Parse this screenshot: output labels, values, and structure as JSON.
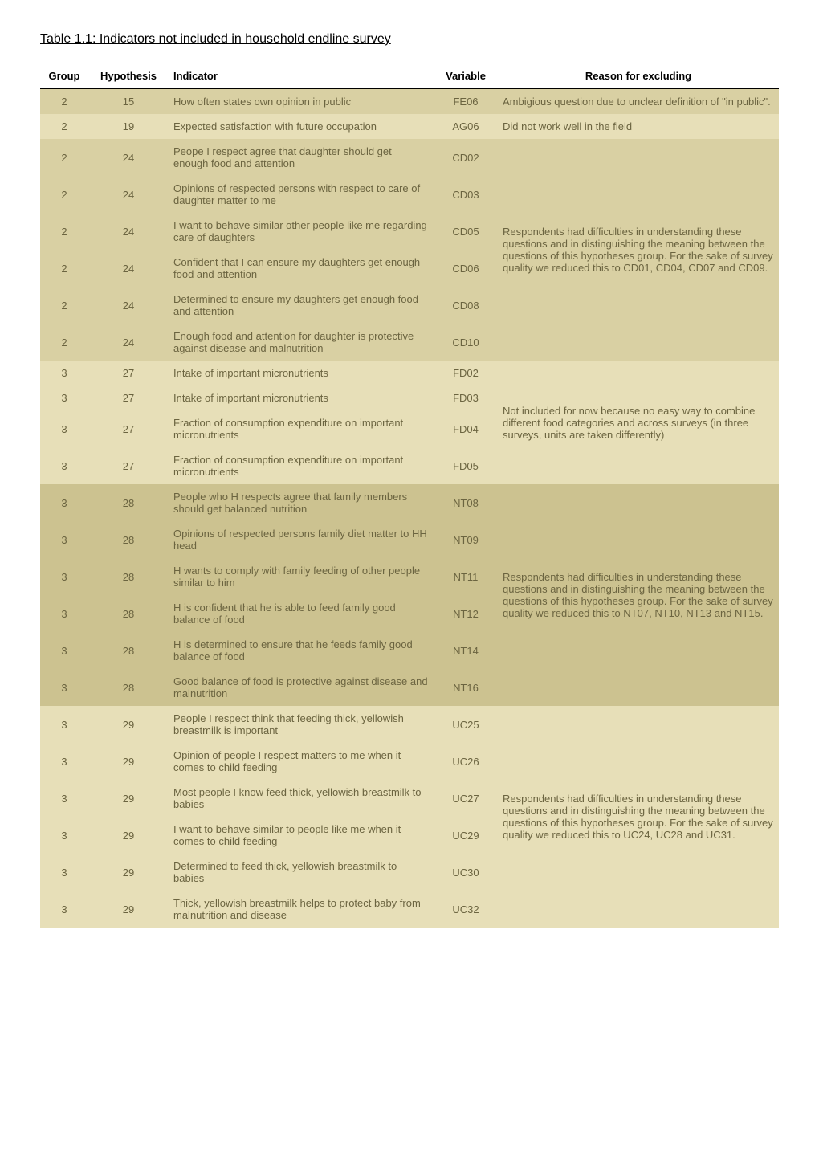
{
  "title": "Table 1.1: Indicators not included in household endline survey",
  "columns": [
    "Group",
    "Hypothesis",
    "Indicator",
    "Variable",
    "Reason for excluding"
  ],
  "row_bg_colors": {
    "band_a": "#d9d0a3",
    "band_b": "#e7dfb8",
    "band_c": "#d9d0a3",
    "band_d": "#ccc290",
    "band_e": "#e7dfb8"
  },
  "text_color": "#6b6440",
  "header_text_color": "#000000",
  "font_family": "Arial, Helvetica, sans-serif",
  "font_size_body": 13,
  "font_size_title": 16,
  "groups": [
    {
      "band": "band-a",
      "rows": [
        {
          "group": "2",
          "hypothesis": "15",
          "indicator": "How often states own opinion in public",
          "variable": "FE06",
          "reason": "Ambigious question due to unclear definition of \"in public\"."
        }
      ]
    },
    {
      "band": "band-b",
      "rows": [
        {
          "group": "2",
          "hypothesis": "19",
          "indicator": "Expected satisfaction with future occupation",
          "variable": "AG06",
          "reason": "Did not work well in the field"
        }
      ]
    },
    {
      "band": "band-c",
      "reason": "Respondents had difficulties in understanding these questions and in distinguishing the meaning between the questions of this hypotheses group. For the sake of survey quality we reduced this to CD01, CD04, CD07 and CD09.",
      "rows": [
        {
          "group": "2",
          "hypothesis": "24",
          "indicator": "Peope I respect agree that daughter should get enough food and attention",
          "variable": "CD02"
        },
        {
          "group": "2",
          "hypothesis": "24",
          "indicator": "Opinions of respected persons with respect to care of daughter matter to me",
          "variable": "CD03"
        },
        {
          "group": "2",
          "hypothesis": "24",
          "indicator": "I want to behave similar other people like me regarding care of daughters",
          "variable": "CD05"
        },
        {
          "group": "2",
          "hypothesis": "24",
          "indicator": "Confident that I can ensure my daughters get enough food and attention",
          "variable": "CD06"
        },
        {
          "group": "2",
          "hypothesis": "24",
          "indicator": "Determined to ensure my daughters get enough food and attention",
          "variable": "CD08"
        },
        {
          "group": "2",
          "hypothesis": "24",
          "indicator": "Enough food and attention for daughter is protective against disease and malnutrition",
          "variable": "CD10"
        }
      ]
    },
    {
      "band": "band-b",
      "reason": "Not included for now because no easy way to combine different food categories and across surveys (in three surveys, units are taken differently)",
      "rows": [
        {
          "group": "3",
          "hypothesis": "27",
          "indicator": "Intake of important micronutrients",
          "variable": "FD02"
        },
        {
          "group": "3",
          "hypothesis": "27",
          "indicator": "Intake of important micronutrients",
          "variable": "FD03"
        },
        {
          "group": "3",
          "hypothesis": "27",
          "indicator": "Fraction of consumption expenditure on important micronutrients",
          "variable": "FD04"
        },
        {
          "group": "3",
          "hypothesis": "27",
          "indicator": "Fraction of consumption expenditure on important micronutrients",
          "variable": "FD05"
        }
      ]
    },
    {
      "band": "band-d",
      "reason": "Respondents had difficulties in understanding these questions and in distinguishing the meaning between the questions of this hypotheses group. For the sake of survey quality we reduced this to NT07, NT10, NT13 and NT15.",
      "rows": [
        {
          "group": "3",
          "hypothesis": "28",
          "indicator": "People who H respects agree that family members should get balanced nutrition",
          "variable": "NT08"
        },
        {
          "group": "3",
          "hypothesis": "28",
          "indicator": "Opinions of respected persons family diet matter to HH head",
          "variable": "NT09"
        },
        {
          "group": "3",
          "hypothesis": "28",
          "indicator": "H wants to comply with family feeding of other people similar to him",
          "variable": "NT11"
        },
        {
          "group": "3",
          "hypothesis": "28",
          "indicator": "H is confident that he is able to feed family good balance of food",
          "variable": "NT12"
        },
        {
          "group": "3",
          "hypothesis": "28",
          "indicator": "H is determined to ensure that he feeds family good balance of food",
          "variable": "NT14"
        },
        {
          "group": "3",
          "hypothesis": "28",
          "indicator": "Good balance of food is protective against disease and malnutrition",
          "variable": "NT16"
        }
      ]
    },
    {
      "band": "band-e",
      "reason": "Respondents had difficulties in understanding these questions and in distinguishing the meaning between the questions of this hypotheses group. For the sake of survey quality we reduced this to UC24, UC28 and UC31.",
      "rows": [
        {
          "group": "3",
          "hypothesis": "29",
          "indicator": "People I respect think that feeding thick, yellowish breastmilk is important",
          "variable": "UC25"
        },
        {
          "group": "3",
          "hypothesis": "29",
          "indicator": "Opinion of people I respect matters to me when it comes to child feeding",
          "variable": "UC26"
        },
        {
          "group": "3",
          "hypothesis": "29",
          "indicator": "Most people I know feed thick, yellowish breastmilk to babies",
          "variable": "UC27"
        },
        {
          "group": "3",
          "hypothesis": "29",
          "indicator": "I want to behave similar to people like me when it comes to child feeding",
          "variable": "UC29"
        },
        {
          "group": "3",
          "hypothesis": "29",
          "indicator": "Determined to feed thick, yellowish breastmilk to babies",
          "variable": "UC30"
        },
        {
          "group": "3",
          "hypothesis": "29",
          "indicator": "Thick, yellowish breastmilk helps to protect baby from malnutrition and disease",
          "variable": "UC32"
        }
      ]
    }
  ]
}
